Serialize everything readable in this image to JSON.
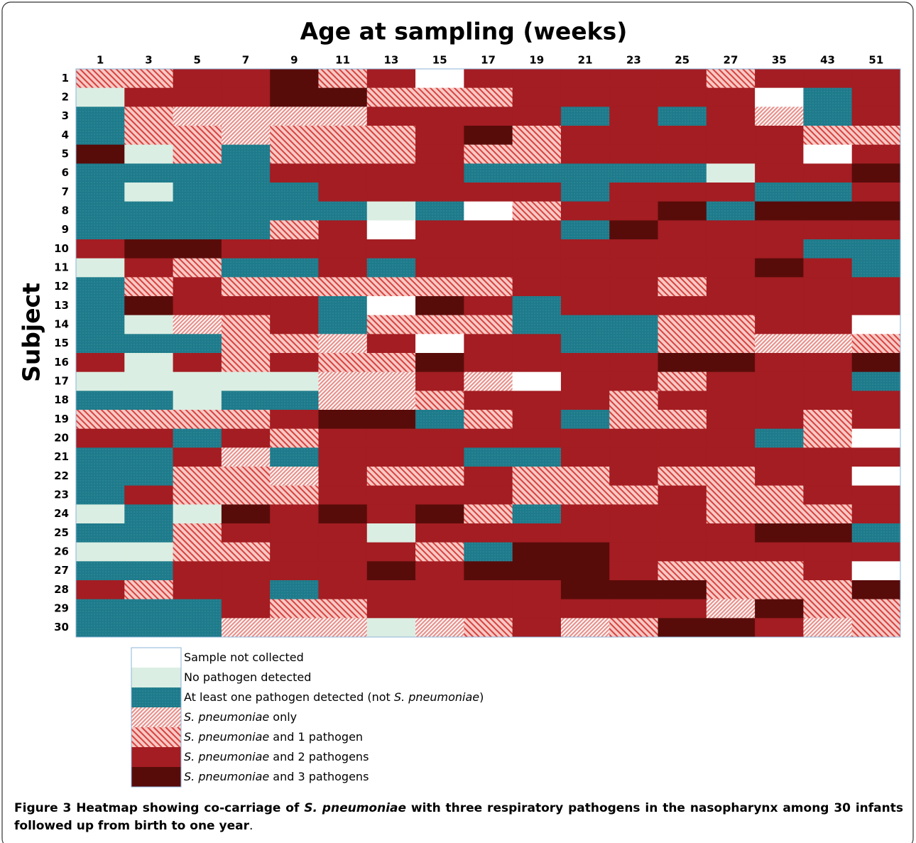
{
  "chart_data": {
    "type": "heatmap",
    "title": "Age at sampling (weeks)",
    "ylabel": "Subject",
    "columns": [
      "1",
      "3",
      "5",
      "7",
      "9",
      "11",
      "13",
      "15",
      "17",
      "19",
      "21",
      "23",
      "25",
      "27",
      "35",
      "43",
      "51"
    ],
    "rows": [
      "1",
      "2",
      "3",
      "4",
      "5",
      "6",
      "7",
      "8",
      "9",
      "10",
      "11",
      "12",
      "13",
      "14",
      "15",
      "16",
      "17",
      "18",
      "19",
      "20",
      "21",
      "22",
      "23",
      "24",
      "25",
      "26",
      "27",
      "28",
      "29",
      "30"
    ],
    "legend": [
      {
        "parts": [
          {
            "t": "Sample not collected"
          }
        ],
        "color": "#ffffff"
      },
      {
        "parts": [
          {
            "t": "No pathogen detected"
          }
        ],
        "color": "#dbeee3"
      },
      {
        "parts": [
          {
            "t": "At least one pathogen detected (not "
          },
          {
            "t": "S. pneumoniae",
            "i": true
          },
          {
            "t": ")"
          }
        ],
        "color": "#1e7b8b",
        "pattern": "dots"
      },
      {
        "parts": [
          {
            "t": "S. pneumoniae",
            "i": true
          },
          {
            "t": " only"
          }
        ],
        "color": "#f3b7b3",
        "pattern": "fine"
      },
      {
        "parts": [
          {
            "t": "S. pneumoniae",
            "i": true
          },
          {
            "t": " and 1  pathogen"
          }
        ],
        "color": "#f3b7b3",
        "pattern": "coarse"
      },
      {
        "parts": [
          {
            "t": "S. pneumoniae",
            "i": true
          },
          {
            "t": " and 2  pathogens"
          }
        ],
        "color": "#a31d22"
      },
      {
        "parts": [
          {
            "t": "S. pneumoniae",
            "i": true
          },
          {
            "t": " and 3  pathogens"
          }
        ],
        "color": "#580c0a"
      }
    ],
    "cells": [
      [
        4,
        4,
        5,
        5,
        6,
        4,
        5,
        0,
        5,
        5,
        5,
        5,
        5,
        4,
        5,
        5,
        5
      ],
      [
        1,
        5,
        5,
        5,
        6,
        6,
        4,
        4,
        4,
        5,
        5,
        5,
        5,
        5,
        0,
        2,
        5
      ],
      [
        2,
        4,
        3,
        3,
        3,
        3,
        5,
        5,
        5,
        5,
        2,
        5,
        2,
        5,
        3,
        2,
        5
      ],
      [
        2,
        4,
        4,
        3,
        4,
        4,
        4,
        5,
        6,
        4,
        5,
        5,
        5,
        5,
        5,
        4,
        4
      ],
      [
        6,
        1,
        4,
        2,
        4,
        4,
        4,
        5,
        4,
        4,
        5,
        5,
        5,
        5,
        5,
        0,
        5
      ],
      [
        2,
        2,
        2,
        2,
        5,
        5,
        5,
        5,
        2,
        2,
        2,
        2,
        2,
        1,
        5,
        5,
        6
      ],
      [
        2,
        1,
        2,
        2,
        2,
        5,
        5,
        5,
        5,
        5,
        2,
        5,
        5,
        5,
        2,
        2,
        5
      ],
      [
        2,
        2,
        2,
        2,
        2,
        2,
        1,
        2,
        0,
        4,
        5,
        5,
        6,
        2,
        6,
        6,
        6
      ],
      [
        2,
        2,
        2,
        2,
        4,
        5,
        0,
        5,
        5,
        5,
        2,
        6,
        5,
        5,
        5,
        5,
        5
      ],
      [
        5,
        6,
        6,
        5,
        5,
        5,
        5,
        5,
        5,
        5,
        5,
        5,
        5,
        5,
        5,
        2,
        2
      ],
      [
        1,
        5,
        4,
        2,
        2,
        5,
        2,
        5,
        5,
        5,
        5,
        5,
        5,
        5,
        6,
        5,
        2
      ],
      [
        2,
        4,
        5,
        4,
        4,
        4,
        4,
        4,
        4,
        5,
        5,
        5,
        4,
        5,
        5,
        5,
        5
      ],
      [
        2,
        6,
        5,
        5,
        5,
        2,
        0,
        6,
        5,
        2,
        5,
        5,
        5,
        5,
        5,
        5,
        5
      ],
      [
        2,
        1,
        3,
        4,
        5,
        2,
        4,
        4,
        4,
        2,
        2,
        2,
        4,
        4,
        5,
        5,
        0
      ],
      [
        2,
        2,
        2,
        4,
        4,
        3,
        5,
        0,
        5,
        5,
        2,
        2,
        4,
        4,
        3,
        3,
        4
      ],
      [
        5,
        1,
        5,
        4,
        5,
        4,
        4,
        6,
        5,
        5,
        5,
        5,
        6,
        6,
        5,
        5,
        6
      ],
      [
        1,
        1,
        1,
        1,
        1,
        3,
        3,
        5,
        3,
        0,
        5,
        5,
        4,
        5,
        5,
        5,
        2
      ],
      [
        2,
        2,
        1,
        2,
        2,
        3,
        3,
        4,
        5,
        5,
        5,
        4,
        5,
        5,
        5,
        5,
        5
      ],
      [
        4,
        4,
        4,
        4,
        5,
        6,
        6,
        2,
        4,
        5,
        2,
        4,
        4,
        5,
        5,
        4,
        5
      ],
      [
        5,
        5,
        2,
        5,
        4,
        5,
        5,
        5,
        5,
        5,
        5,
        5,
        5,
        5,
        2,
        4,
        0
      ],
      [
        2,
        2,
        5,
        3,
        2,
        5,
        5,
        5,
        2,
        2,
        5,
        5,
        5,
        5,
        5,
        5,
        5
      ],
      [
        2,
        2,
        4,
        4,
        3,
        5,
        4,
        4,
        5,
        4,
        4,
        5,
        4,
        4,
        5,
        5,
        0
      ],
      [
        2,
        5,
        4,
        4,
        4,
        5,
        5,
        5,
        5,
        4,
        4,
        4,
        5,
        4,
        4,
        5,
        5
      ],
      [
        1,
        2,
        1,
        6,
        5,
        6,
        5,
        6,
        4,
        2,
        5,
        5,
        5,
        4,
        4,
        4,
        5
      ],
      [
        2,
        2,
        4,
        5,
        5,
        5,
        1,
        5,
        5,
        5,
        5,
        5,
        5,
        5,
        6,
        6,
        2
      ],
      [
        1,
        1,
        4,
        4,
        5,
        5,
        5,
        4,
        2,
        6,
        6,
        5,
        5,
        5,
        5,
        5,
        5
      ],
      [
        2,
        2,
        5,
        5,
        5,
        5,
        6,
        5,
        6,
        6,
        6,
        5,
        4,
        4,
        4,
        5,
        0
      ],
      [
        5,
        4,
        5,
        5,
        2,
        5,
        5,
        5,
        5,
        5,
        6,
        6,
        6,
        4,
        4,
        4,
        6
      ],
      [
        2,
        2,
        2,
        5,
        4,
        4,
        5,
        5,
        5,
        5,
        5,
        5,
        5,
        3,
        6,
        4,
        4
      ],
      [
        2,
        2,
        2,
        3,
        3,
        3,
        1,
        3,
        4,
        5,
        3,
        4,
        6,
        6,
        5,
        3,
        4
      ]
    ],
    "caption": [
      {
        "t": "Figure 3",
        "b": true
      },
      {
        "t": " Heatmap showing co-carriage of ",
        "b": true
      },
      {
        "t": "S. pneumoniae",
        "b": true,
        "i": true
      },
      {
        "t": " with three respiratory pathogens in the nasopharynx among 30 infants followed up from birth to one year",
        "b": true
      },
      {
        "t": "."
      }
    ]
  }
}
